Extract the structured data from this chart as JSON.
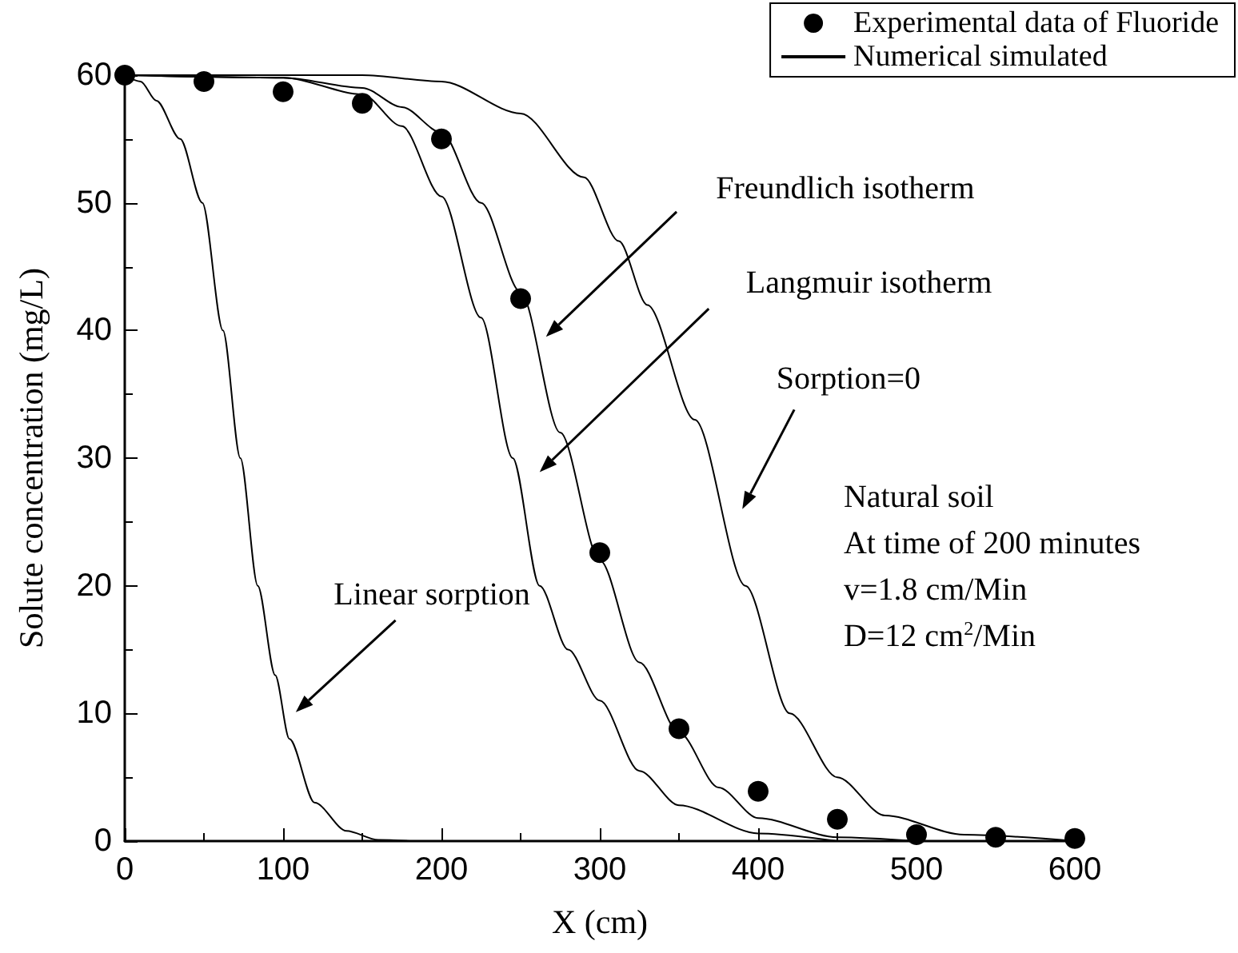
{
  "chart_data": {
    "type": "line",
    "xlabel": "X (cm)",
    "ylabel": "Solute concentration (mg/L)",
    "xlim": [
      0,
      600
    ],
    "xticks": [
      0,
      100,
      200,
      300,
      400,
      500,
      600
    ],
    "ylim": [
      0,
      60
    ],
    "yticks": [
      0,
      10,
      20,
      30,
      40,
      50,
      60
    ],
    "grid": false,
    "legend": "top right",
    "annotations": [
      "Freundlich isotherm",
      "Langmuir isotherm",
      "Sorption=0",
      "Linear sorption",
      "Natural soil",
      "At time of 200 minutes",
      "v=1.8 cm/Min",
      "D=12 cm$^{2}$/Min"
    ],
    "series": [
      {
        "name": "Experimental data of Fluoride",
        "type": "scatter",
        "marker": "circle",
        "color": "#000000",
        "x": [
          0,
          50,
          100,
          150,
          200,
          250,
          300,
          350,
          400,
          450,
          500,
          550,
          600
        ],
        "values": [
          60,
          59.5,
          58.7,
          57.8,
          55,
          42.5,
          22.6,
          8.8,
          3.9,
          1.7,
          0.5,
          0.3,
          0.2
        ]
      },
      {
        "name": "Numerical simulated",
        "line_style": "solid",
        "color": "#000000",
        "x": [
          0,
          100,
          150,
          175,
          200,
          225,
          250,
          275,
          300,
          325,
          350,
          375,
          400,
          450,
          500
        ],
        "values": [
          60,
          59.8,
          59,
          57.5,
          55.5,
          50,
          43,
          32,
          22,
          14,
          8.5,
          4.2,
          1.8,
          0.3,
          0
        ]
      },
      {
        "line_style": "solid",
        "color": "#000000",
        "x": [
          0,
          100,
          150,
          175,
          200,
          225,
          245,
          262,
          280,
          300,
          325,
          350,
          400,
          450
        ],
        "values": [
          60,
          59.8,
          58.5,
          56,
          50.5,
          41,
          30,
          20,
          15,
          11,
          5.5,
          2.8,
          0.6,
          0
        ]
      },
      {
        "line_style": "solid",
        "color": "#000000",
        "x": [
          0,
          150,
          200,
          250,
          290,
          312,
          330,
          360,
          392,
          420,
          450,
          480,
          530,
          600
        ],
        "values": [
          60,
          60,
          59.5,
          57,
          52,
          47,
          42,
          33,
          20,
          10,
          5,
          2,
          0.5,
          0
        ]
      },
      {
        "line_style": "solid",
        "color": "#000000",
        "x": [
          0,
          10,
          20,
          35,
          49,
          62,
          73,
          84,
          95,
          104,
          120,
          140,
          160,
          180
        ],
        "values": [
          60,
          59.5,
          58,
          55,
          50,
          40,
          30,
          20,
          13,
          8,
          3,
          0.8,
          0.1,
          0
        ]
      }
    ]
  }
}
